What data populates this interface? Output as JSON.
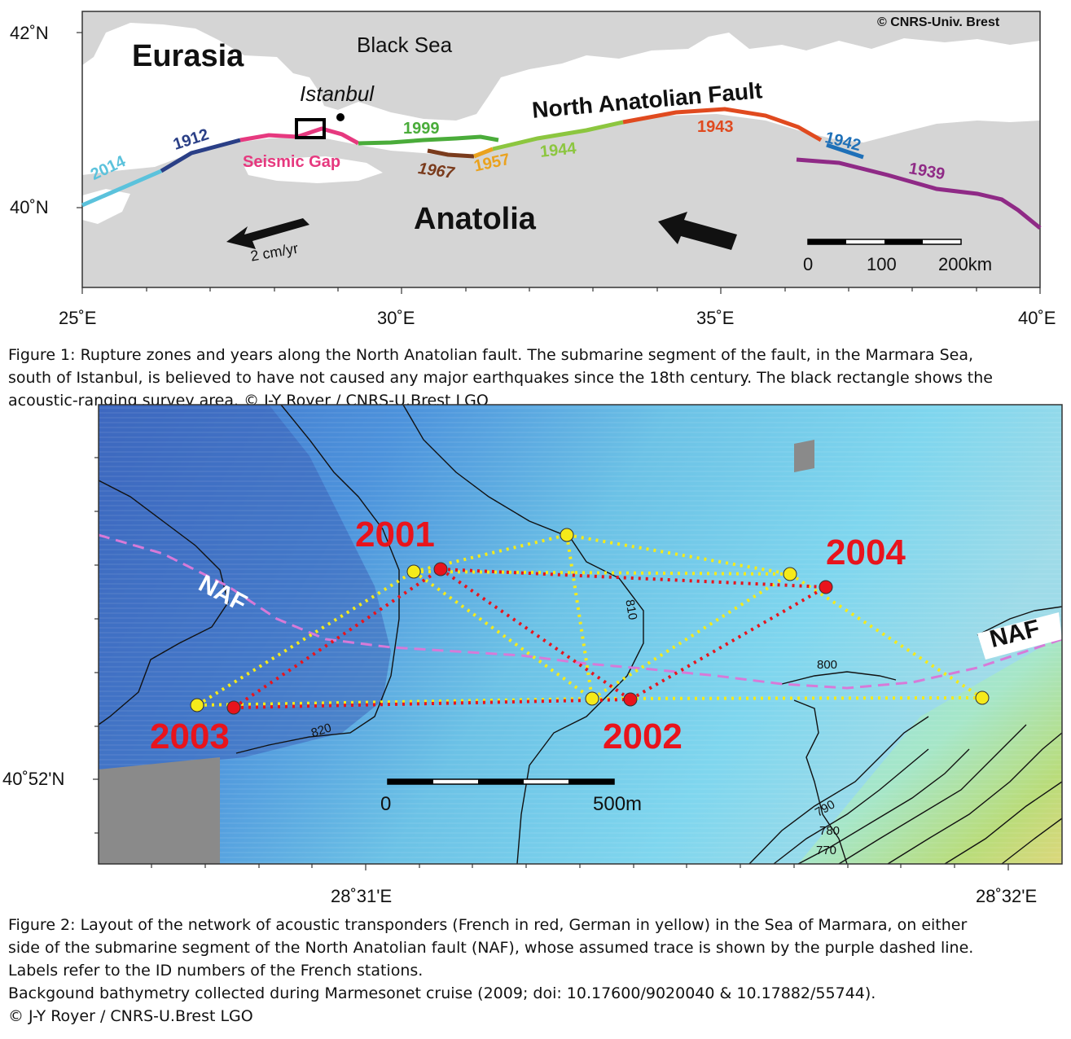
{
  "figure1": {
    "copyright": "© CNRS-Univ. Brest",
    "regions": {
      "eurasia": "Eurasia",
      "anatolia": "Anatolia",
      "black_sea": "Black Sea"
    },
    "city": "Istanbul",
    "fault_name": "North Anatolian Fault",
    "seismic_gap": "Seismic Gap",
    "motion_label": "2 cm/yr",
    "scale": {
      "ticks": [
        "0",
        "100",
        "200km"
      ]
    },
    "lat_labels": [
      "42˚N",
      "40˚N"
    ],
    "lon_labels": [
      "25˚E",
      "30˚E",
      "35˚E",
      "40˚E"
    ],
    "rupture_years": [
      {
        "year": "2014",
        "color": "#5bc2dc"
      },
      {
        "year": "1912",
        "color": "#2a3f86"
      },
      {
        "year": "1999",
        "color": "#4aac3a"
      },
      {
        "year": "1967",
        "color": "#7a3b1c"
      },
      {
        "year": "1957",
        "color": "#eaa21e"
      },
      {
        "year": "1944",
        "color": "#8cc63f"
      },
      {
        "year": "1943",
        "color": "#e04a1f"
      },
      {
        "year": "1942",
        "color": "#1e70b8"
      },
      {
        "year": "1939",
        "color": "#8f2a86"
      }
    ],
    "seismic_gap_color": "#e6397f",
    "caption": [
      "Figure 1: Rupture zones and years along the North Anatolian fault. The submarine segment of the fault, in the Marmara Sea,",
      "south of Istanbul, is believed to have not caused any major earthquakes since the 18th century. The black rectangle shows the",
      "acoustic-ranging survey area. © J-Y Royer / CNRS-U.Brest LGO"
    ]
  },
  "figure2": {
    "stations_french": [
      "2001",
      "2002",
      "2003",
      "2004"
    ],
    "station_color_french": "#e8141c",
    "station_color_german": "#f5ea1a",
    "fault_label": "NAF",
    "fault_trace_color": "#d77ad8",
    "contours": [
      "810",
      "800",
      "820",
      "790",
      "780",
      "770"
    ],
    "scale": {
      "ticks": [
        "0",
        "500m"
      ]
    },
    "lat_labels": [
      "40˚52'N"
    ],
    "lon_labels": [
      "28˚31'E",
      "28˚32'E"
    ],
    "caption": [
      "Figure 2: Layout of the network of acoustic transponders (French in red, German in yellow) in the Sea of Marmara, on either",
      "side of the submarine segment of the North Anatolian fault (NAF), whose assumed trace is shown by the purple dashed line.",
      "Labels refer to the ID numbers of the French stations.",
      "Backgound bathymetry collected during Marmesonet cruise (2009; doi: 10.17600/9020040 & 10.17882/55744).",
      "© J-Y Royer / CNRS-U.Brest LGO"
    ]
  }
}
